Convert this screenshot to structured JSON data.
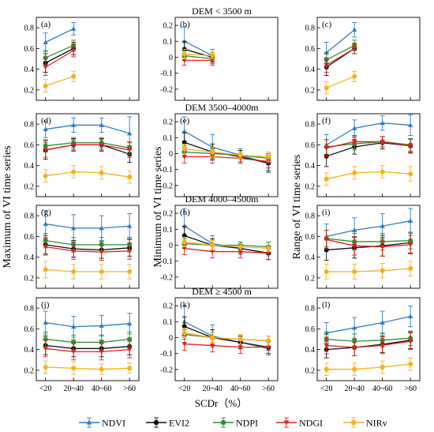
{
  "categories": [
    "<20",
    "20~40",
    "40~60",
    ">60"
  ],
  "xlabel": "SCDr（%）",
  "col_ylabels": [
    "Maximum of VI time series",
    "Minimum of VI time series",
    "Range of VI time series"
  ],
  "row_titles": [
    "DEM < 3500 m",
    "DEM 3500–4000m",
    "DEM 4000–4500m",
    "DEM ≥ 4500 m"
  ],
  "series_styles": [
    {
      "name": "NDVI",
      "color": "#2f7fc4",
      "marker": "triangle"
    },
    {
      "name": "EVI2",
      "color": "#111111",
      "marker": "circle"
    },
    {
      "name": "NDPI",
      "color": "#2f8f2f",
      "marker": "circle"
    },
    {
      "name": "NDGI",
      "color": "#e0201e",
      "marker": "down-triangle"
    },
    {
      "name": "NIRv",
      "color": "#f5b21e",
      "marker": "circle"
    }
  ],
  "legend": {
    "placement": "bottom",
    "entries": [
      "NDVI",
      "EVI2",
      "NDPI",
      "NDGI",
      "NIRv"
    ]
  },
  "chart_data": [
    {
      "panel": "(a)",
      "type": "line",
      "ylim": [
        0.1,
        0.9
      ],
      "yticks": [
        "0.2",
        "0.4",
        "0.6",
        "0.8"
      ],
      "series": [
        {
          "name": "NDVI",
          "values": [
            0.66,
            0.79,
            null,
            null
          ],
          "err": [
            0.09,
            0.06,
            null,
            null
          ]
        },
        {
          "name": "EVI2",
          "values": [
            0.46,
            0.6,
            null,
            null
          ],
          "err": [
            0.09,
            0.06,
            null,
            null
          ]
        },
        {
          "name": "NDPI",
          "values": [
            0.51,
            0.63,
            null,
            null
          ],
          "err": [
            0.07,
            0.05,
            null,
            null
          ]
        },
        {
          "name": "NDGI",
          "values": [
            0.42,
            0.58,
            null,
            null
          ],
          "err": [
            0.08,
            0.06,
            null,
            null
          ]
        },
        {
          "name": "NIRv",
          "values": [
            0.24,
            0.33,
            null,
            null
          ],
          "err": [
            0.06,
            0.05,
            null,
            null
          ]
        }
      ]
    },
    {
      "panel": "(b)",
      "type": "line",
      "ylim": [
        -0.27,
        0.25
      ],
      "yticks": [
        "-0.2",
        "-0.1",
        "0",
        "0.1",
        "0.2"
      ],
      "series": [
        {
          "name": "NDVI",
          "values": [
            0.1,
            0.01,
            null,
            null
          ],
          "err": [
            0.09,
            0.04,
            null,
            null
          ]
        },
        {
          "name": "EVI2",
          "values": [
            0.05,
            0.0,
            null,
            null
          ],
          "err": [
            0.05,
            0.03,
            null,
            null
          ]
        },
        {
          "name": "NDPI",
          "values": [
            0.01,
            -0.01,
            null,
            null
          ],
          "err": [
            0.03,
            0.03,
            null,
            null
          ]
        },
        {
          "name": "NDGI",
          "values": [
            -0.02,
            -0.02,
            null,
            null
          ],
          "err": [
            0.03,
            0.03,
            null,
            null
          ]
        },
        {
          "name": "NIRv",
          "values": [
            0.02,
            0.01,
            null,
            null
          ],
          "err": [
            0.03,
            0.02,
            null,
            null
          ]
        }
      ]
    },
    {
      "panel": "(c)",
      "type": "line",
      "ylim": [
        0.1,
        0.9
      ],
      "yticks": [
        "0.2",
        "0.4",
        "0.6",
        "0.8"
      ],
      "series": [
        {
          "name": "NDVI",
          "values": [
            0.56,
            0.78,
            null,
            null
          ],
          "err": [
            0.1,
            0.07,
            null,
            null
          ]
        },
        {
          "name": "EVI2",
          "values": [
            0.42,
            0.6,
            null,
            null
          ],
          "err": [
            0.08,
            0.05,
            null,
            null
          ]
        },
        {
          "name": "NDPI",
          "values": [
            0.49,
            0.63,
            null,
            null
          ],
          "err": [
            0.07,
            0.05,
            null,
            null
          ]
        },
        {
          "name": "NDGI",
          "values": [
            0.44,
            0.6,
            null,
            null
          ],
          "err": [
            0.07,
            0.05,
            null,
            null
          ]
        },
        {
          "name": "NIRv",
          "values": [
            0.22,
            0.33,
            null,
            null
          ],
          "err": [
            0.06,
            0.05,
            null,
            null
          ]
        }
      ]
    },
    {
      "panel": "(d)",
      "type": "line",
      "ylim": [
        0.1,
        0.9
      ],
      "yticks": [
        "0.2",
        "0.4",
        "0.6",
        "0.8"
      ],
      "series": [
        {
          "name": "NDVI",
          "values": [
            0.75,
            0.79,
            0.79,
            0.71
          ],
          "err": [
            0.08,
            0.07,
            0.07,
            0.16
          ]
        },
        {
          "name": "EVI2",
          "values": [
            0.55,
            0.6,
            0.6,
            0.51
          ],
          "err": [
            0.09,
            0.06,
            0.06,
            0.08
          ]
        },
        {
          "name": "NDPI",
          "values": [
            0.59,
            0.62,
            0.62,
            0.57
          ],
          "err": [
            0.06,
            0.05,
            0.05,
            0.06
          ]
        },
        {
          "name": "NDGI",
          "values": [
            0.55,
            0.6,
            0.6,
            0.55
          ],
          "err": [
            0.07,
            0.05,
            0.05,
            0.07
          ]
        },
        {
          "name": "NIRv",
          "values": [
            0.3,
            0.34,
            0.33,
            0.29
          ],
          "err": [
            0.06,
            0.06,
            0.06,
            0.06
          ]
        }
      ]
    },
    {
      "panel": "(e)",
      "type": "line",
      "ylim": [
        -0.27,
        0.25
      ],
      "yticks": [
        "-0.2",
        "-0.1",
        "0",
        "0.1",
        "0.2"
      ],
      "series": [
        {
          "name": "NDVI",
          "values": [
            0.14,
            0.04,
            -0.01,
            -0.06
          ],
          "err": [
            0.09,
            0.08,
            0.04,
            0.06
          ]
        },
        {
          "name": "EVI2",
          "values": [
            0.07,
            0.01,
            -0.02,
            -0.06
          ],
          "err": [
            0.06,
            0.05,
            0.04,
            0.05
          ]
        },
        {
          "name": "NDPI",
          "values": [
            0.01,
            0.0,
            -0.01,
            -0.03
          ],
          "err": [
            0.03,
            0.03,
            0.02,
            0.03
          ]
        },
        {
          "name": "NDGI",
          "values": [
            -0.02,
            -0.02,
            -0.03,
            -0.05
          ],
          "err": [
            0.04,
            0.04,
            0.03,
            0.04
          ]
        },
        {
          "name": "NIRv",
          "values": [
            0.03,
            0.01,
            -0.01,
            -0.02
          ],
          "err": [
            0.03,
            0.03,
            0.02,
            0.03
          ]
        }
      ]
    },
    {
      "panel": "(f)",
      "type": "line",
      "ylim": [
        0.1,
        0.9
      ],
      "yticks": [
        "0.2",
        "0.4",
        "0.6",
        "0.8"
      ],
      "series": [
        {
          "name": "NDVI",
          "values": [
            0.6,
            0.76,
            0.81,
            0.79
          ],
          "err": [
            0.1,
            0.08,
            0.07,
            0.1
          ]
        },
        {
          "name": "EVI2",
          "values": [
            0.49,
            0.58,
            0.62,
            0.59
          ],
          "err": [
            0.1,
            0.07,
            0.06,
            0.07
          ]
        },
        {
          "name": "NDPI",
          "values": [
            0.58,
            0.61,
            0.63,
            0.6
          ],
          "err": [
            0.07,
            0.06,
            0.05,
            0.06
          ]
        },
        {
          "name": "NDGI",
          "values": [
            0.57,
            0.63,
            0.63,
            0.59
          ],
          "err": [
            0.08,
            0.06,
            0.05,
            0.06
          ]
        },
        {
          "name": "NIRv",
          "values": [
            0.27,
            0.33,
            0.34,
            0.32
          ],
          "err": [
            0.06,
            0.06,
            0.06,
            0.07
          ]
        }
      ]
    },
    {
      "panel": "(g)",
      "type": "line",
      "ylim": [
        0.1,
        0.9
      ],
      "yticks": [
        "0.2",
        "0.4",
        "0.6",
        "0.8"
      ],
      "series": [
        {
          "name": "NDVI",
          "values": [
            0.72,
            0.68,
            0.68,
            0.7
          ],
          "err": [
            0.13,
            0.13,
            0.12,
            0.12
          ]
        },
        {
          "name": "EVI2",
          "values": [
            0.52,
            0.48,
            0.47,
            0.49
          ],
          "err": [
            0.09,
            0.08,
            0.08,
            0.08
          ]
        },
        {
          "name": "NDPI",
          "values": [
            0.56,
            0.52,
            0.52,
            0.52
          ],
          "err": [
            0.07,
            0.07,
            0.07,
            0.07
          ]
        },
        {
          "name": "NDGI",
          "values": [
            0.5,
            0.46,
            0.45,
            0.46
          ],
          "err": [
            0.08,
            0.08,
            0.08,
            0.08
          ]
        },
        {
          "name": "NIRv",
          "values": [
            0.28,
            0.26,
            0.26,
            0.26
          ],
          "err": [
            0.08,
            0.07,
            0.07,
            0.07
          ]
        }
      ]
    },
    {
      "panel": "(h)",
      "type": "line",
      "ylim": [
        -0.27,
        0.25
      ],
      "yticks": [
        "-0.2",
        "-0.1",
        "0",
        "0.1",
        "0.2"
      ],
      "series": [
        {
          "name": "NDVI",
          "values": [
            0.12,
            0.01,
            -0.02,
            -0.05
          ],
          "err": [
            0.11,
            0.05,
            0.04,
            0.04
          ]
        },
        {
          "name": "EVI2",
          "values": [
            0.06,
            0.0,
            -0.02,
            -0.05
          ],
          "err": [
            0.06,
            0.04,
            0.03,
            0.04
          ]
        },
        {
          "name": "NDPI",
          "values": [
            0.01,
            0.0,
            0.0,
            -0.01
          ],
          "err": [
            0.03,
            0.03,
            0.02,
            0.03
          ]
        },
        {
          "name": "NDGI",
          "values": [
            -0.02,
            -0.04,
            -0.04,
            -0.05
          ],
          "err": [
            0.04,
            0.04,
            0.04,
            0.04
          ]
        },
        {
          "name": "NIRv",
          "values": [
            0.02,
            0.0,
            -0.01,
            -0.02
          ],
          "err": [
            0.03,
            0.03,
            0.02,
            0.02
          ]
        }
      ]
    },
    {
      "panel": "(i)",
      "type": "line",
      "ylim": [
        0.1,
        0.9
      ],
      "yticks": [
        "0.2",
        "0.4",
        "0.6",
        "0.8"
      ],
      "series": [
        {
          "name": "NDVI",
          "values": [
            0.6,
            0.66,
            0.7,
            0.75
          ],
          "err": [
            0.12,
            0.12,
            0.12,
            0.12
          ]
        },
        {
          "name": "EVI2",
          "values": [
            0.47,
            0.49,
            0.51,
            0.54
          ],
          "err": [
            0.1,
            0.1,
            0.1,
            0.1
          ]
        },
        {
          "name": "NDPI",
          "values": [
            0.58,
            0.55,
            0.55,
            0.56
          ],
          "err": [
            0.08,
            0.08,
            0.08,
            0.08
          ]
        },
        {
          "name": "NDGI",
          "values": [
            0.57,
            0.51,
            0.5,
            0.52
          ],
          "err": [
            0.09,
            0.09,
            0.09,
            0.09
          ]
        },
        {
          "name": "NIRv",
          "values": [
            0.26,
            0.26,
            0.27,
            0.29
          ],
          "err": [
            0.07,
            0.07,
            0.07,
            0.07
          ]
        }
      ]
    },
    {
      "panel": "(j)",
      "type": "line",
      "ylim": [
        0.1,
        0.9
      ],
      "yticks": [
        "0.2",
        "0.4",
        "0.6",
        "0.8"
      ],
      "series": [
        {
          "name": "NDVI",
          "values": [
            0.66,
            0.62,
            0.63,
            0.65
          ],
          "err": [
            0.11,
            0.1,
            0.1,
            0.1
          ]
        },
        {
          "name": "EVI2",
          "values": [
            0.44,
            0.41,
            0.41,
            0.43
          ],
          "err": [
            0.09,
            0.08,
            0.08,
            0.08
          ]
        },
        {
          "name": "NDPI",
          "values": [
            0.5,
            0.47,
            0.47,
            0.5
          ],
          "err": [
            0.07,
            0.07,
            0.07,
            0.07
          ]
        },
        {
          "name": "NDGI",
          "values": [
            0.41,
            0.38,
            0.38,
            0.4
          ],
          "err": [
            0.08,
            0.08,
            0.08,
            0.08
          ]
        },
        {
          "name": "NIRv",
          "values": [
            0.23,
            0.22,
            0.21,
            0.22
          ],
          "err": [
            0.06,
            0.06,
            0.05,
            0.05
          ]
        }
      ]
    },
    {
      "panel": "(k)",
      "type": "line",
      "ylim": [
        -0.27,
        0.25
      ],
      "yticks": [
        "-0.2",
        "-0.1",
        "0",
        "0.1",
        "0.2"
      ],
      "series": [
        {
          "name": "NDVI",
          "values": [
            0.1,
            0.01,
            -0.03,
            -0.07
          ],
          "err": [
            0.1,
            0.07,
            0.04,
            0.04
          ]
        },
        {
          "name": "EVI2",
          "values": [
            0.07,
            0.0,
            -0.03,
            -0.06
          ],
          "err": [
            0.06,
            0.05,
            0.04,
            0.04
          ]
        },
        {
          "name": "NDPI",
          "values": [
            0.02,
            0.0,
            -0.01,
            -0.02
          ],
          "err": [
            0.03,
            0.03,
            0.03,
            0.03
          ]
        },
        {
          "name": "NDGI",
          "values": [
            -0.04,
            -0.05,
            -0.06,
            -0.06
          ],
          "err": [
            0.04,
            0.04,
            0.04,
            0.04
          ]
        },
        {
          "name": "NIRv",
          "values": [
            0.03,
            0.0,
            -0.01,
            -0.02
          ],
          "err": [
            0.03,
            0.03,
            0.03,
            0.03
          ]
        }
      ]
    },
    {
      "panel": "(l)",
      "type": "line",
      "ylim": [
        0.1,
        0.9
      ],
      "yticks": [
        "0.2",
        "0.4",
        "0.6",
        "0.8"
      ],
      "series": [
        {
          "name": "NDVI",
          "values": [
            0.56,
            0.61,
            0.66,
            0.72
          ],
          "err": [
            0.1,
            0.1,
            0.11,
            0.1
          ]
        },
        {
          "name": "EVI2",
          "values": [
            0.4,
            0.42,
            0.45,
            0.49
          ],
          "err": [
            0.08,
            0.08,
            0.08,
            0.08
          ]
        },
        {
          "name": "NDPI",
          "values": [
            0.5,
            0.48,
            0.49,
            0.51
          ],
          "err": [
            0.07,
            0.07,
            0.07,
            0.07
          ]
        },
        {
          "name": "NDGI",
          "values": [
            0.44,
            0.42,
            0.44,
            0.48
          ],
          "err": [
            0.08,
            0.08,
            0.08,
            0.08
          ]
        },
        {
          "name": "NIRv",
          "values": [
            0.21,
            0.21,
            0.23,
            0.26
          ],
          "err": [
            0.06,
            0.06,
            0.06,
            0.06
          ]
        }
      ]
    }
  ]
}
